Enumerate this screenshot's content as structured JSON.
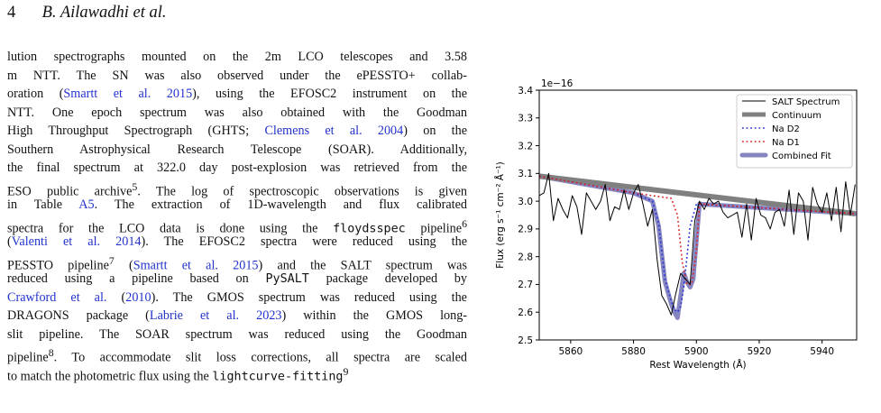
{
  "header": {
    "page_number": "4",
    "authors": "B. Ailawadhi et al."
  },
  "body_lines": [
    [
      {
        "t": "lution spectrographs mounted on the 2m LCO telescopes and 3.58"
      }
    ],
    [
      {
        "t": "m NTT. The SN was also observed under the ePESSTO+ collab-"
      }
    ],
    [
      {
        "t": "oration ("
      },
      {
        "t": "Smartt et al. 2015",
        "c": "link"
      },
      {
        "t": "), using the EFOSC2 instrument on the"
      }
    ],
    [
      {
        "t": "NTT. One epoch spectrum was also obtained with the Goodman"
      }
    ],
    [
      {
        "t": "High Throughput Spectrograph (GHTS; "
      },
      {
        "t": "Clemens et al. 2004",
        "c": "link"
      },
      {
        "t": ") on the"
      }
    ],
    [
      {
        "t": "Southern Astrophysical Research Telescope (SOAR). Additionally,"
      }
    ],
    [
      {
        "t": "the final spectrum at 322.0 day post-explosion was retrieved from the"
      }
    ],
    [
      {
        "t": "ESO public archive"
      },
      {
        "t": "5",
        "c": "sup"
      },
      {
        "t": ". The log of spectroscopic observations is given"
      }
    ],
    [
      {
        "t": "in Table "
      },
      {
        "t": "A5",
        "c": "link"
      },
      {
        "t": ". The extraction of 1D-wavelength and flux calibrated"
      }
    ],
    [
      {
        "t": "spectra for the LCO data is done using the "
      },
      {
        "t": "floydsspec",
        "c": "mono"
      },
      {
        "t": " pipeline"
      },
      {
        "t": "6",
        "c": "sup"
      }
    ],
    [
      {
        "t": "("
      },
      {
        "t": "Valenti et al. 2014",
        "c": "link"
      },
      {
        "t": "). The EFOSC2 spectra were reduced using the"
      }
    ],
    [
      {
        "t": "PESSTO pipeline"
      },
      {
        "t": "7",
        "c": "sup"
      },
      {
        "t": " ("
      },
      {
        "t": "Smartt et al. 2015",
        "c": "link"
      },
      {
        "t": ") and the SALT spectrum was"
      }
    ],
    [
      {
        "t": "reduced using a pipeline based on "
      },
      {
        "t": "PySALT",
        "c": "mono"
      },
      {
        "t": " package developed by"
      }
    ],
    [
      {
        "t": "Crawford et al.",
        "c": "link"
      },
      {
        "t": " ("
      },
      {
        "t": "2010",
        "c": "link"
      },
      {
        "t": "). The GMOS spectrum was reduced using the"
      }
    ],
    [
      {
        "t": "DRAGONS package ("
      },
      {
        "t": "Labrie et al. 2023",
        "c": "link"
      },
      {
        "t": ") within the GMOS long-"
      }
    ],
    [
      {
        "t": "slit pipeline. The SOAR spectrum was reduced using the Goodman"
      }
    ],
    [
      {
        "t": "pipeline"
      },
      {
        "t": "8",
        "c": "sup"
      },
      {
        "t": ". To accommodate slit loss corrections, all spectra are scaled"
      }
    ],
    [
      {
        "t": "to match the photometric flux using the "
      },
      {
        "t": "lightcurve-fitting",
        "c": "mono"
      },
      {
        "t": "9",
        "c": "sup"
      }
    ]
  ],
  "chart_data": {
    "type": "line",
    "xlabel": "Rest Wavelength (Å)",
    "ylabel": "Flux (erg s⁻¹ cm⁻² Å⁻¹)",
    "y_offset_label": "1e−16",
    "xlim": [
      5850,
      5951
    ],
    "ylim": [
      2.5,
      3.4
    ],
    "xticks": [
      5860,
      5880,
      5900,
      5920,
      5940
    ],
    "yticks": [
      2.5,
      2.6,
      2.7,
      2.8,
      2.9,
      3.0,
      3.1,
      3.2,
      3.3,
      3.4
    ],
    "ytick_labels": [
      "2.5",
      "2.6",
      "2.7",
      "2.8",
      "2.9",
      "3.0",
      "3.1",
      "3.2",
      "3.3",
      "3.4"
    ],
    "legend_position": "top-right",
    "series": [
      {
        "name": "SALT Spectrum",
        "style": "solid",
        "color": "#000000",
        "x": [
          5850,
          5851.5,
          5853,
          5854.5,
          5856,
          5857.5,
          5859,
          5860.5,
          5862,
          5863.5,
          5865,
          5866.5,
          5868,
          5869.5,
          5871,
          5872.5,
          5874,
          5875.5,
          5877,
          5878.5,
          5880,
          5881.5,
          5883,
          5884.5,
          5886,
          5887.5,
          5889,
          5890.5,
          5892,
          5893.5,
          5895,
          5896.5,
          5898,
          5899.5,
          5901,
          5902.5,
          5904,
          5905.5,
          5907,
          5908.5,
          5910,
          5911.5,
          5913,
          5914.5,
          5916,
          5917.5,
          5919,
          5920.5,
          5922,
          5923.5,
          5925,
          5926.5,
          5928,
          5929.5,
          5931,
          5932.5,
          5934,
          5935.5,
          5937,
          5938.5,
          5940,
          5941.5,
          5943,
          5944.5,
          5946,
          5947.5,
          5949,
          5950.5
        ],
        "y": [
          3.02,
          3.03,
          3.1,
          2.93,
          3.01,
          2.97,
          2.94,
          3.02,
          2.98,
          2.88,
          3.03,
          3.0,
          2.97,
          3.0,
          3.06,
          2.93,
          2.98,
          2.97,
          3.04,
          2.97,
          3.03,
          3.06,
          2.99,
          2.91,
          2.97,
          2.79,
          2.66,
          2.63,
          2.59,
          2.67,
          2.74,
          2.72,
          2.7,
          2.93,
          3.0,
          2.97,
          3.01,
          2.99,
          3.0,
          2.96,
          2.94,
          2.95,
          2.96,
          2.87,
          2.99,
          2.86,
          3.01,
          2.95,
          2.94,
          2.9,
          2.96,
          2.97,
          2.91,
          3.04,
          2.88,
          3.03,
          3.0,
          2.86,
          3.05,
          2.99,
          2.96,
          3.03,
          2.93,
          3.05,
          2.89,
          3.07,
          2.95,
          3.06
        ]
      },
      {
        "name": "Continuum",
        "style": "thick",
        "color": "#808080",
        "x": [
          5850,
          5950.5
        ],
        "y": [
          3.09,
          2.955
        ]
      },
      {
        "name": "Na D2",
        "style": "dotted",
        "color": "#2233dd",
        "x": [
          5850,
          5880,
          5886,
          5888,
          5890,
          5892,
          5893,
          5894,
          5895,
          5896,
          5897,
          5898,
          5900,
          5950.5
        ],
        "y": [
          3.09,
          3.03,
          3.0,
          2.92,
          2.72,
          2.64,
          2.61,
          2.6,
          2.62,
          2.69,
          2.8,
          2.91,
          2.99,
          2.955
        ]
      },
      {
        "name": "Na D1",
        "style": "dotted",
        "color": "#dd2222",
        "x": [
          5850,
          5880,
          5892,
          5894,
          5895.5,
          5897,
          5898.5,
          5900,
          5901,
          5950.5
        ],
        "y": [
          3.09,
          3.03,
          3.01,
          2.95,
          2.78,
          2.7,
          2.7,
          2.82,
          2.99,
          2.955
        ]
      },
      {
        "name": "Combined Fit",
        "style": "band",
        "color": "#7a78b8",
        "x": [
          5850,
          5880,
          5886,
          5888,
          5890,
          5892,
          5893,
          5894,
          5895,
          5896,
          5897,
          5898,
          5899,
          5900,
          5901,
          5950.5
        ],
        "y": [
          3.09,
          3.03,
          3.0,
          2.91,
          2.71,
          2.63,
          2.6,
          2.58,
          2.66,
          2.74,
          2.71,
          2.69,
          2.72,
          2.86,
          2.99,
          2.955
        ]
      }
    ]
  }
}
